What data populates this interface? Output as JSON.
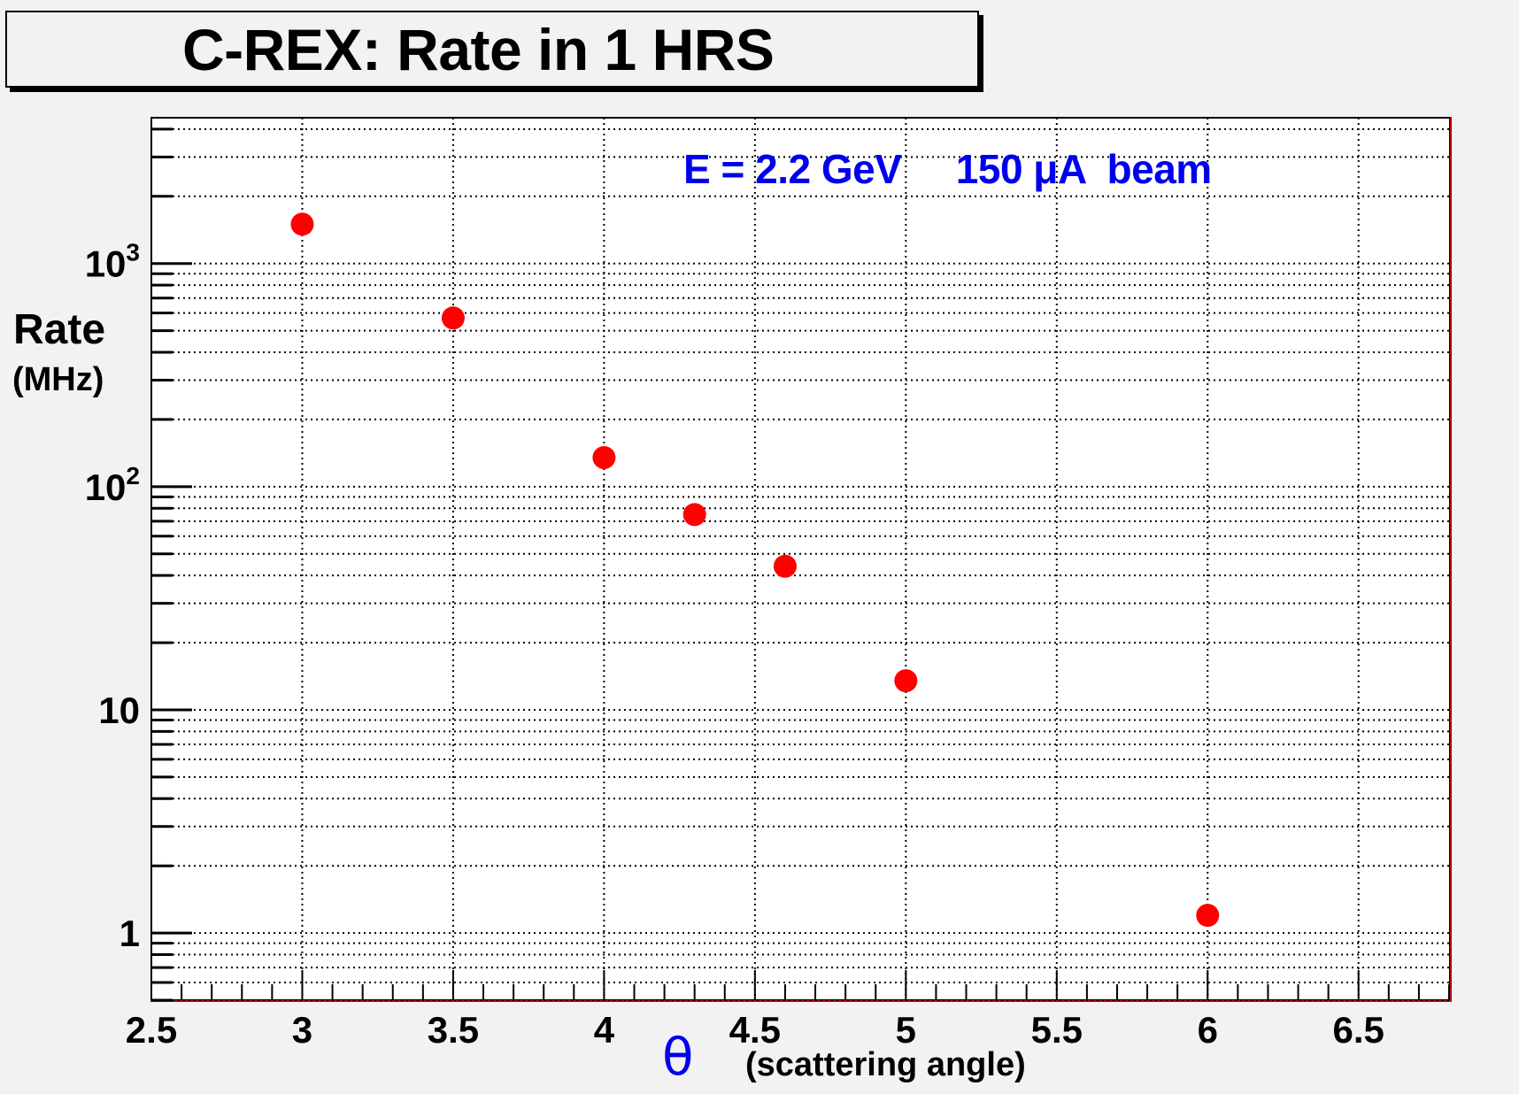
{
  "chart_data": {
    "type": "scatter",
    "title": "C-REX: Rate in 1 HRS",
    "xlabel_symbol": "θ",
    "xlabel_text": "(scattering angle)",
    "ylabel": "Rate",
    "ylabel_unit": "(MHz)",
    "annotation": "E = 2.2 GeV     150 μA  beam",
    "x": [
      3.0,
      3.5,
      4.0,
      4.3,
      4.6,
      5.0,
      6.0
    ],
    "y": [
      1500,
      570,
      135,
      75,
      44,
      13.5,
      1.2
    ],
    "xlim": [
      2.5,
      6.8
    ],
    "ylim": [
      0.5,
      4500
    ],
    "yscale": "log",
    "grid": true,
    "marker_color": "#ff0000",
    "annotation_color": "#0000ee",
    "x_tick_labels": [
      "2.5",
      "3",
      "3.5",
      "4",
      "4.5",
      "5",
      "5.5",
      "6",
      "6.5"
    ],
    "y_tick_labels": [
      {
        "base": "1",
        "exp": ""
      },
      {
        "base": "10",
        "exp": ""
      },
      {
        "base": "10",
        "exp": "2"
      },
      {
        "base": "10",
        "exp": "3"
      }
    ]
  }
}
